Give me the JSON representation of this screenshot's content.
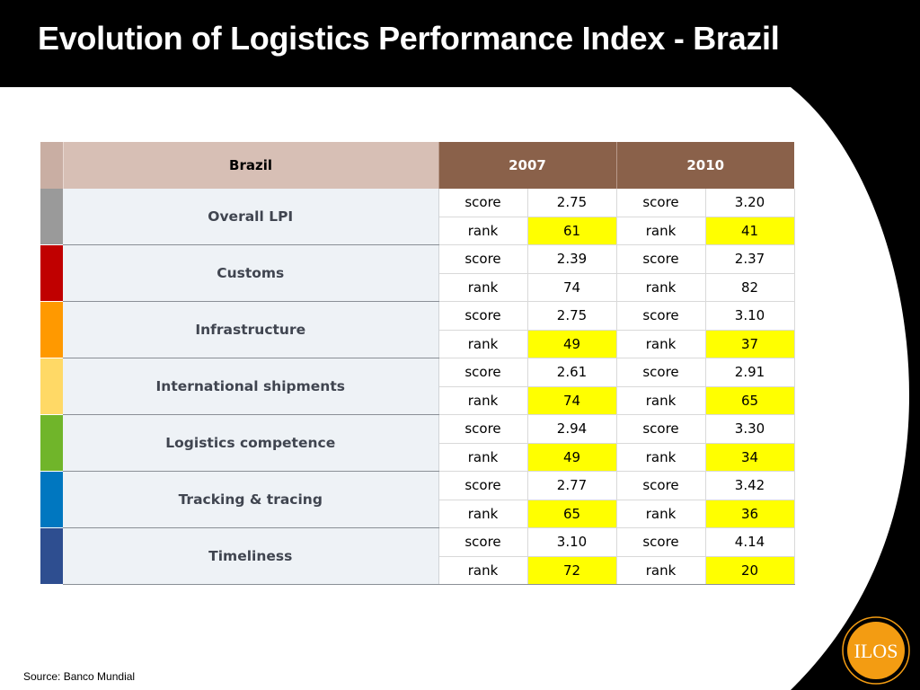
{
  "title": "Evolution of Logistics Performance Index - Brazil",
  "source": "Source: Banco Mundial",
  "logo_text": "ILOS",
  "table": {
    "header": {
      "country": "Brazil",
      "years": [
        "2007",
        "2010"
      ]
    },
    "categories": [
      {
        "name": "Overall LPI",
        "color": "#9a9a9a",
        "score2007": "2.75",
        "rank2007": "61",
        "score2010": "3.20",
        "rank2010": "41",
        "rank2007_highlight": true,
        "rank2010_highlight": true
      },
      {
        "name": "Customs",
        "color": "#c00000",
        "score2007": "2.39",
        "rank2007": "74",
        "score2010": "2.37",
        "rank2010": "82",
        "rank2007_highlight": false,
        "rank2010_highlight": false
      },
      {
        "name": "Infrastructure",
        "color": "#ff9900",
        "score2007": "2.75",
        "rank2007": "49",
        "score2010": "3.10",
        "rank2010": "37",
        "rank2007_highlight": true,
        "rank2010_highlight": true
      },
      {
        "name": "International shipments",
        "color": "#ffd966",
        "score2007": "2.61",
        "rank2007": "74",
        "score2010": "2.91",
        "rank2010": "65",
        "rank2007_highlight": true,
        "rank2010_highlight": true
      },
      {
        "name": "Logistics competence",
        "color": "#70b52a",
        "score2007": "2.94",
        "rank2007": "49",
        "score2010": "3.30",
        "rank2010": "34",
        "rank2007_highlight": true,
        "rank2010_highlight": true
      },
      {
        "name": "Tracking & tracing",
        "color": "#0077c0",
        "score2007": "2.77",
        "rank2007": "65",
        "score2010": "3.42",
        "rank2010": "36",
        "rank2007_highlight": true,
        "rank2010_highlight": true
      },
      {
        "name": "Timeliness",
        "color": "#2e4e90",
        "score2007": "3.10",
        "rank2007": "72",
        "score2010": "4.14",
        "rank2010": "20",
        "rank2007_highlight": true,
        "rank2010_highlight": true
      }
    ],
    "labels": {
      "score": "score",
      "rank": "rank"
    }
  }
}
